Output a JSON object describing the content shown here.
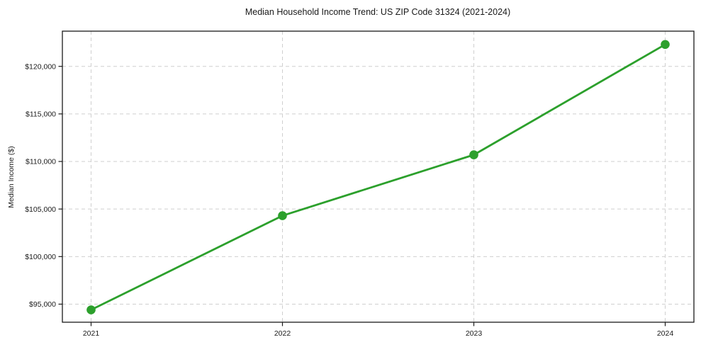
{
  "chart_data": {
    "type": "line",
    "title": "Median Household Income Trend: US ZIP Code 31324 (2021-2024)",
    "xlabel": "",
    "ylabel": "Median Income ($)",
    "x": [
      2021,
      2022,
      2023,
      2024
    ],
    "values": [
      94400,
      104300,
      110700,
      122300
    ],
    "series": [
      {
        "name": "Median Household Income",
        "values": [
          94400,
          104300,
          110700,
          122300
        ]
      }
    ],
    "xtick_values": [
      2021,
      2022,
      2023,
      2024
    ],
    "xtick_labels": [
      "2021",
      "2022",
      "2023",
      "2024"
    ],
    "ytick_values": [
      95000,
      100000,
      105000,
      110000,
      115000,
      120000
    ],
    "ytick_labels": [
      "$95,000",
      "$100,000",
      "$105,000",
      "$110,000",
      "$115,000",
      "$120,000"
    ],
    "xlim": [
      2020.85,
      2024.15
    ],
    "ylim": [
      93100,
      123700
    ],
    "grid": true,
    "grid_style": "dashed",
    "legend": "none",
    "colors": {
      "line": "#2ca02c",
      "marker": "#2ca02c",
      "grid": "#cfcfcf",
      "axis": "#1a1a1a",
      "background": "#ffffff"
    }
  }
}
